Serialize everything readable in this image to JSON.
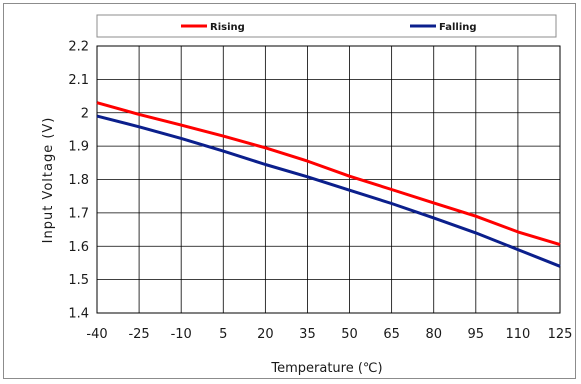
{
  "chart_data": {
    "type": "line",
    "title": "",
    "xlabel": "Temperature (℃)",
    "ylabel": "Input Voltage (V)",
    "xlim": [
      -40,
      125
    ],
    "ylim": [
      1.4,
      2.2
    ],
    "x_ticks": [
      -40,
      -25,
      -10,
      5,
      20,
      35,
      50,
      65,
      80,
      95,
      110,
      125
    ],
    "y_ticks": [
      1.4,
      1.5,
      1.6,
      1.7,
      1.8,
      1.9,
      2.0,
      2.1,
      2.2
    ],
    "x_tick_labels": [
      "-40",
      "-25",
      "-10",
      "5",
      "20",
      "35",
      "50",
      "65",
      "80",
      "95",
      "110",
      "125"
    ],
    "y_tick_labels": [
      "1.4",
      "1.5",
      "1.6",
      "1.7",
      "1.8",
      "1.9",
      "2",
      "2.1",
      "2.2"
    ],
    "grid": true,
    "legend_position": "top",
    "x": [
      -40,
      -25,
      -10,
      5,
      20,
      35,
      50,
      65,
      80,
      95,
      110,
      125
    ],
    "series": [
      {
        "name": "Rising",
        "color": "#ff0000",
        "values": [
          2.03,
          1.995,
          1.963,
          1.93,
          1.895,
          1.855,
          1.81,
          1.77,
          1.73,
          1.69,
          1.643,
          1.605
        ]
      },
      {
        "name": "Falling",
        "color": "#0b1f8c",
        "values": [
          1.99,
          1.958,
          1.923,
          1.885,
          1.845,
          1.808,
          1.768,
          1.728,
          1.685,
          1.64,
          1.59,
          1.54
        ]
      }
    ]
  }
}
